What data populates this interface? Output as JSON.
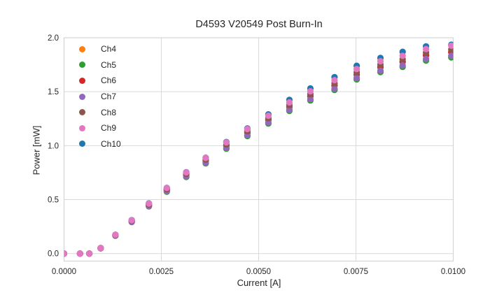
{
  "chart_data": {
    "type": "scatter",
    "title": "D4593 V20549 Post Burn-In",
    "xlabel": "Current [A]",
    "ylabel": "Power [mW]",
    "xlim": [
      0.0,
      0.01
    ],
    "ylim": [
      -0.07,
      2.0
    ],
    "grid": true,
    "legend_position": "upper left",
    "grid_color": "#d9d9d9",
    "spine_color": "#d4d4d4",
    "text_color": "#262626",
    "xticks": [
      {
        "value": 0.0,
        "label": "0.0000"
      },
      {
        "value": 0.0025,
        "label": "0.0025"
      },
      {
        "value": 0.005,
        "label": "0.0050"
      },
      {
        "value": 0.0075,
        "label": "0.0075"
      },
      {
        "value": 0.01,
        "label": "0.0100"
      }
    ],
    "yticks": [
      {
        "value": 0.0,
        "label": "0.0"
      },
      {
        "value": 0.5,
        "label": "0.5"
      },
      {
        "value": 1.0,
        "label": "1.0"
      },
      {
        "value": 1.5,
        "label": "1.5"
      },
      {
        "value": 2.0,
        "label": "2.0"
      }
    ],
    "x": [
      0.0,
      0.00041,
      0.00065,
      0.00094,
      0.00132,
      0.00174,
      0.00218,
      0.00264,
      0.00314,
      0.00364,
      0.00417,
      0.00471,
      0.00525,
      0.00579,
      0.00633,
      0.00695,
      0.00752,
      0.00813,
      0.0087,
      0.0093,
      0.00995
    ],
    "series": [
      {
        "name": "Ch4",
        "color": "#ff7f0e",
        "values": [
          0,
          0,
          0,
          0.05,
          0.17,
          0.3,
          0.45,
          0.59,
          0.73,
          0.86,
          1.0,
          1.12,
          1.24,
          1.36,
          1.46,
          1.56,
          1.66,
          1.73,
          1.78,
          1.84,
          1.87
        ]
      },
      {
        "name": "Ch5",
        "color": "#2ca02c",
        "values": [
          0,
          0,
          0,
          0.049,
          0.165,
          0.292,
          0.437,
          0.573,
          0.71,
          0.836,
          0.972,
          1.089,
          1.205,
          1.322,
          1.419,
          1.516,
          1.614,
          1.682,
          1.73,
          1.789,
          1.818
        ]
      },
      {
        "name": "Ch6",
        "color": "#d62728",
        "values": [
          0,
          0,
          0,
          0.05,
          0.17,
          0.299,
          0.449,
          0.589,
          0.729,
          0.858,
          0.998,
          1.118,
          1.238,
          1.357,
          1.457,
          1.557,
          1.657,
          1.727,
          1.776,
          1.836,
          1.866
        ]
      },
      {
        "name": "Ch7",
        "color": "#9467bd",
        "values": [
          0,
          0,
          0,
          0.049,
          0.167,
          0.294,
          0.441,
          0.578,
          0.715,
          0.843,
          0.98,
          1.098,
          1.215,
          1.333,
          1.431,
          1.529,
          1.627,
          1.695,
          1.744,
          1.803,
          1.833
        ]
      },
      {
        "name": "Ch8",
        "color": "#8c564b",
        "values": [
          0,
          0,
          0,
          0.051,
          0.172,
          0.304,
          0.455,
          0.597,
          0.739,
          0.87,
          1.012,
          1.133,
          1.255,
          1.376,
          1.478,
          1.579,
          1.68,
          1.751,
          1.801,
          1.862,
          1.892
        ]
      },
      {
        "name": "Ch9",
        "color": "#e377c2",
        "values": [
          0,
          0,
          0,
          0.052,
          0.175,
          0.309,
          0.464,
          0.608,
          0.752,
          0.886,
          1.03,
          1.154,
          1.277,
          1.401,
          1.504,
          1.607,
          1.71,
          1.782,
          1.833,
          1.895,
          1.926
        ]
      },
      {
        "name": "Ch10",
        "color": "#1f77b4",
        "values": [
          0,
          0,
          0,
          0.052,
          0.175,
          0.31,
          0.465,
          0.609,
          0.754,
          0.888,
          1.034,
          1.16,
          1.29,
          1.425,
          1.53,
          1.635,
          1.74,
          1.813,
          1.87,
          1.92,
          1.935
        ]
      }
    ]
  }
}
